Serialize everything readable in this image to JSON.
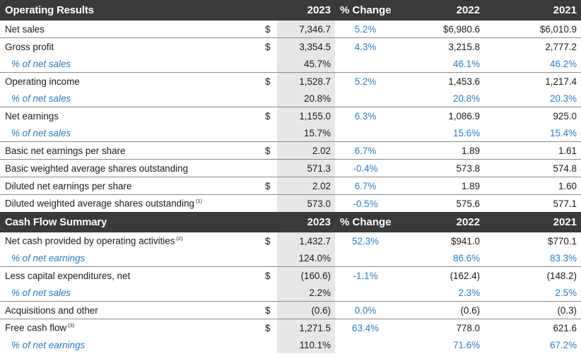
{
  "operating": {
    "header": {
      "title": "Operating Results",
      "c2023": "2023",
      "change": "% Change",
      "c2022": "2022",
      "c2021": "2021"
    },
    "rows": [
      {
        "label": "Net sales",
        "sup": "",
        "dollar": "$",
        "v2023": "7,346.7",
        "change": "5.2%",
        "v2022": "$6,980.6",
        "v2021": "$6,010.9"
      },
      {
        "label": "Gross profit",
        "sup": "",
        "dollar": "$",
        "v2023": "3,354.5",
        "change": "4.3%",
        "v2022": "3,215.8",
        "v2021": "2,777.2"
      },
      {
        "label": "% of net sales",
        "sup": "",
        "dollar": "",
        "v2023": "45.7%",
        "change": "",
        "v2022": "46.1%",
        "v2021": "46.2%"
      },
      {
        "label": "Operating income",
        "sup": "",
        "dollar": "$",
        "v2023": "1,528.7",
        "change": "5.2%",
        "v2022": "1,453.6",
        "v2021": "1,217.4"
      },
      {
        "label": "% of net sales",
        "sup": "",
        "dollar": "",
        "v2023": "20.8%",
        "change": "",
        "v2022": "20.8%",
        "v2021": "20.3%"
      },
      {
        "label": "Net earnings",
        "sup": "",
        "dollar": "$",
        "v2023": "1,155.0",
        "change": "6.3%",
        "v2022": "1,086.9",
        "v2021": "925.0"
      },
      {
        "label": "% of net sales",
        "sup": "",
        "dollar": "",
        "v2023": "15.7%",
        "change": "",
        "v2022": "15.6%",
        "v2021": "15.4%"
      },
      {
        "label": "Basic net earnings per share",
        "sup": "",
        "dollar": "$",
        "v2023": "2.02",
        "change": "6.7%",
        "v2022": "1.89",
        "v2021": "1.61"
      },
      {
        "label": "Basic weighted average shares outstanding",
        "sup": "",
        "dollar": "",
        "v2023": "571.3",
        "change": "-0.4%",
        "v2022": "573.8",
        "v2021": "574.8"
      },
      {
        "label": "Diluted net earnings per share",
        "sup": "",
        "dollar": "$",
        "v2023": "2.02",
        "change": "6.7%",
        "v2022": "1.89",
        "v2021": "1.60"
      },
      {
        "label": "Diluted weighted average shares outstanding",
        "sup": "(1)",
        "dollar": "",
        "v2023": "573.0",
        "change": "-0.5%",
        "v2022": "575.6",
        "v2021": "577.1"
      }
    ]
  },
  "cashflow": {
    "header": {
      "title": "Cash Flow Summary",
      "c2023": "2023",
      "change": "% Change",
      "c2022": "2022",
      "c2021": "2021"
    },
    "rows": [
      {
        "label": "Net cash provided by operating activities",
        "sup": "(2)",
        "dollar": "$",
        "v2023": "1,432.7",
        "change": "52.3%",
        "v2022": "$941.0",
        "v2021": "$770.1"
      },
      {
        "label": "% of net earnings",
        "sup": "",
        "dollar": "",
        "v2023": "124.0%",
        "change": "",
        "v2022": "86.6%",
        "v2021": "83.3%"
      },
      {
        "label": "Less capital expenditures, net",
        "sup": "",
        "dollar": "$",
        "v2023": "(160.6)",
        "change": "-1.1%",
        "v2022": "(162.4)",
        "v2021": "(148.2)"
      },
      {
        "label": "% of net sales",
        "sup": "",
        "dollar": "",
        "v2023": "2.2%",
        "change": "",
        "v2022": "2.3%",
        "v2021": "2.5%"
      },
      {
        "label": "Acquisitions and other",
        "sup": "",
        "dollar": "$",
        "v2023": "(0.6)",
        "change": "0.0%",
        "v2022": "(0.6)",
        "v2021": "(0.3)"
      },
      {
        "label": "Free cash flow",
        "sup": "(3)",
        "dollar": "$",
        "v2023": "1,271.5",
        "change": "63.4%",
        "v2022": "778.0",
        "v2021": "621.6"
      },
      {
        "label": "% of net earnings",
        "sup": "",
        "dollar": "",
        "v2023": "110.1%",
        "change": "",
        "v2022": "71.6%",
        "v2021": "67.2%"
      }
    ]
  },
  "colors": {
    "header_bg": "#3a3a3a",
    "highlight_col": "#e7e7e7",
    "accent_blue": "#2b7bbf"
  }
}
